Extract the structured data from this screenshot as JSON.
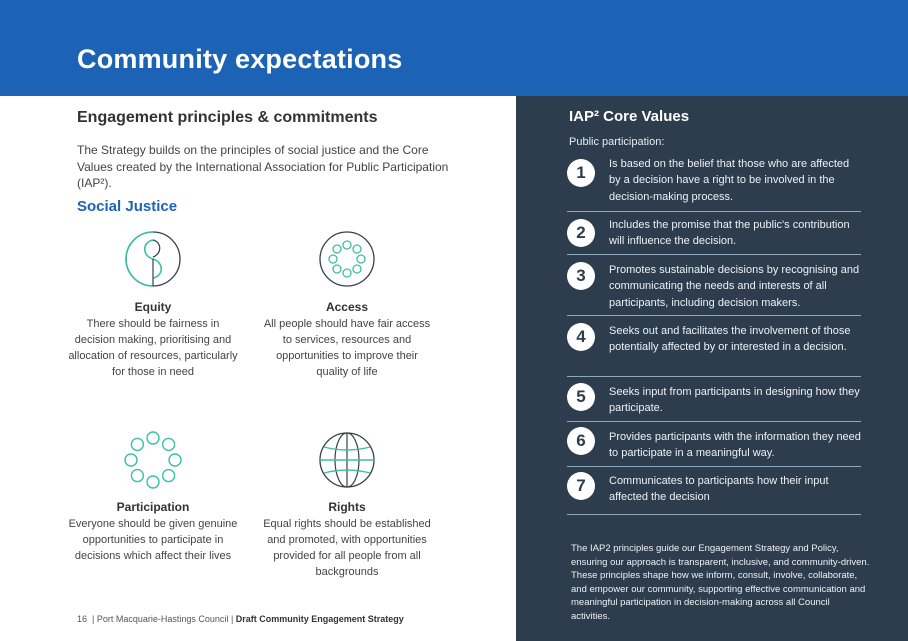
{
  "header": {
    "title": "Community expectations"
  },
  "left": {
    "heading": "Engagement principles & commitments",
    "intro": "The Strategy builds on the principles of social justice and the Core Values created by the International Association for Public Participation (IAP²).",
    "social_justice_heading": "Social Justice",
    "principles": [
      {
        "icon": "equity-icon",
        "name": "Equity",
        "description": "There should be fairness in decision making, prioritising and allocation of resources, particularly for those in need"
      },
      {
        "icon": "access-icon",
        "name": "Access",
        "description": "All people should have fair access to services, resources and opportunities to improve their quality of life"
      },
      {
        "icon": "participation-icon",
        "name": "Participation",
        "description": "Everyone should be given genuine opportunities to participate in decisions which affect their lives"
      },
      {
        "icon": "rights-icon",
        "name": "Rights",
        "description": "Equal rights should be established and promoted, with opportunities provided for all people from all backgrounds"
      }
    ]
  },
  "footer": {
    "page_number": "16",
    "council": "Port Macquarie-Hastings Council",
    "document": "Draft Community Engagement Strategy"
  },
  "right": {
    "heading": "IAP² Core Values",
    "subheading": "Public participation:",
    "values": [
      {
        "number": "1",
        "text": "Is based on the belief that those who are affected by a decision have a right to be involved in the decision-making process."
      },
      {
        "number": "2",
        "text": "Includes the promise that the public's contribution will influence the decision."
      },
      {
        "number": "3",
        "text": "Promotes sustainable decisions by recognising and communicating the needs and interests of all participants, including decision makers."
      },
      {
        "number": "4",
        "text": "Seeks out and facilitates the involvement of those potentially affected by or interested in a decision."
      },
      {
        "number": "5",
        "text": "Seeks input from participants in designing how they participate."
      },
      {
        "number": "6",
        "text": "Provides participants with the information they need to participate in a meaningful way."
      },
      {
        "number": "7",
        "text": "Communicates to participants how their input affected the decision"
      }
    ],
    "closing": "The IAP2 principles guide our Engagement Strategy and Policy, ensuring our approach is transparent, inclusive, and community-driven. These principles shape how we inform, consult, involve, collaborate, and empower our community, supporting effective communication and meaningful participation in decision-making across all Council activities."
  },
  "colors": {
    "banner": "#1c63b6",
    "dark_panel": "#2d3d4e",
    "icon_teal": "#3cbfa4",
    "accent_blue": "#1c63b6"
  }
}
